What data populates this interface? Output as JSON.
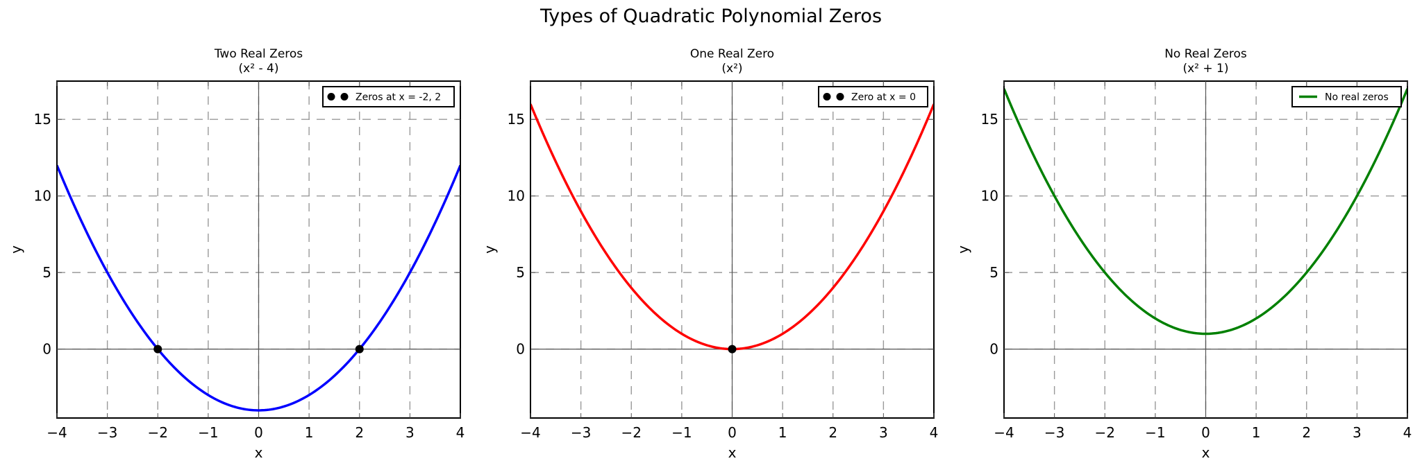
{
  "figure": {
    "title": "Types of Quadratic Polynomial Zeros"
  },
  "style": {
    "grid_color": "#999999",
    "axis_line_color": "#555555",
    "spine_color": "#000000",
    "marker_color": "#000000"
  },
  "chart_data": [
    {
      "type": "line",
      "title": "Two Real Zeros",
      "subtitle": "(x² - 4)",
      "xlabel": "x",
      "ylabel": "y",
      "xlim": [
        -4,
        4
      ],
      "ylim": [
        -4.5,
        17.5
      ],
      "xticks": [
        -4,
        -3,
        -2,
        -1,
        0,
        1,
        2,
        3,
        4
      ],
      "xtick_labels": [
        "−4",
        "−3",
        "−2",
        "−1",
        "0",
        "1",
        "2",
        "3",
        "4"
      ],
      "yticks": [
        0,
        5,
        10,
        15
      ],
      "ytick_labels": [
        "0",
        "5",
        "10",
        "15"
      ],
      "grid": true,
      "function": "x^2 - 4",
      "coefficients": [
        1,
        0,
        -4
      ],
      "color": "#0000ff",
      "series": [
        {
          "name": "x² - 4",
          "x": [
            -4,
            -3,
            -2,
            -1,
            0,
            1,
            2,
            3,
            4
          ],
          "y": [
            12,
            5,
            0,
            -3,
            -4,
            -3,
            0,
            5,
            12
          ]
        }
      ],
      "zeros": [
        -2,
        2
      ],
      "legend": {
        "label": "Zeros at x = -2, 2",
        "marker": "dot",
        "position": "upper right"
      }
    },
    {
      "type": "line",
      "title": "One Real Zero",
      "subtitle": "(x²)",
      "xlabel": "x",
      "ylabel": "y",
      "xlim": [
        -4,
        4
      ],
      "ylim": [
        -4.5,
        17.5
      ],
      "xticks": [
        -4,
        -3,
        -2,
        -1,
        0,
        1,
        2,
        3,
        4
      ],
      "xtick_labels": [
        "−4",
        "−3",
        "−2",
        "−1",
        "0",
        "1",
        "2",
        "3",
        "4"
      ],
      "yticks": [
        0,
        5,
        10,
        15
      ],
      "ytick_labels": [
        "0",
        "5",
        "10",
        "15"
      ],
      "grid": true,
      "function": "x^2",
      "coefficients": [
        1,
        0,
        0
      ],
      "color": "#ff0000",
      "series": [
        {
          "name": "x²",
          "x": [
            -4,
            -3,
            -2,
            -1,
            0,
            1,
            2,
            3,
            4
          ],
          "y": [
            16,
            9,
            4,
            1,
            0,
            1,
            4,
            9,
            16
          ]
        }
      ],
      "zeros": [
        0
      ],
      "legend": {
        "label": "Zero at x = 0",
        "marker": "dot",
        "position": "upper right"
      }
    },
    {
      "type": "line",
      "title": "No Real Zeros",
      "subtitle": "(x² + 1)",
      "xlabel": "x",
      "ylabel": "y",
      "xlim": [
        -4,
        4
      ],
      "ylim": [
        -4.5,
        17.5
      ],
      "xticks": [
        -4,
        -3,
        -2,
        -1,
        0,
        1,
        2,
        3,
        4
      ],
      "xtick_labels": [
        "−4",
        "−3",
        "−2",
        "−1",
        "0",
        "1",
        "2",
        "3",
        "4"
      ],
      "yticks": [
        0,
        5,
        10,
        15
      ],
      "ytick_labels": [
        "0",
        "5",
        "10",
        "15"
      ],
      "grid": true,
      "function": "x^2 + 1",
      "coefficients": [
        1,
        0,
        1
      ],
      "color": "#008000",
      "series": [
        {
          "name": "x² + 1",
          "x": [
            -4,
            -3,
            -2,
            -1,
            0,
            1,
            2,
            3,
            4
          ],
          "y": [
            17,
            10,
            5,
            2,
            1,
            2,
            5,
            10,
            17
          ]
        }
      ],
      "zeros": [],
      "legend": {
        "label": "No real zeros",
        "marker": "line",
        "position": "upper right"
      }
    }
  ]
}
